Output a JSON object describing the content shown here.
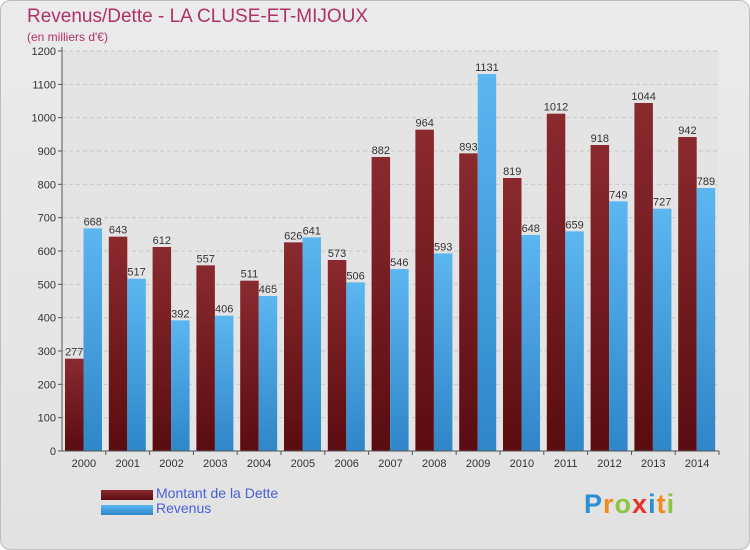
{
  "title": "Revenus/Dette - LA CLUSE-ET-MIJOUX",
  "subtitle": "(en milliers d'€)",
  "colors": {
    "dette": "#7d1f24",
    "revenus": "#4ba6e6",
    "title": "#b0306a",
    "legend_text": "#4a5fd8"
  },
  "chart_data": {
    "type": "bar",
    "title": "Revenus/Dette - LA CLUSE-ET-MIJOUX",
    "ylabel": "(en milliers d'€)",
    "xlabel": "",
    "ylim": [
      0,
      1200
    ],
    "yticks": [
      0,
      100,
      200,
      300,
      400,
      500,
      600,
      700,
      800,
      900,
      1000,
      1100,
      1200
    ],
    "grid": true,
    "legend_position": "bottom-left",
    "categories": [
      "2000",
      "2001",
      "2002",
      "2003",
      "2004",
      "2005",
      "2006",
      "2007",
      "2008",
      "2009",
      "2010",
      "2011",
      "2012",
      "2013",
      "2014"
    ],
    "series": [
      {
        "name": "Montant de la Dette",
        "values": [
          277,
          643,
          612,
          557,
          511,
          626,
          573,
          882,
          964,
          893,
          819,
          1012,
          918,
          1044,
          942
        ]
      },
      {
        "name": "Revenus",
        "values": [
          668,
          517,
          392,
          406,
          465,
          641,
          506,
          546,
          593,
          1131,
          648,
          659,
          749,
          727,
          789
        ]
      }
    ]
  },
  "legend": [
    {
      "label": "Montant de la Dette"
    },
    {
      "label": "Revenus"
    }
  ],
  "logo": {
    "text": "Proxiti"
  }
}
